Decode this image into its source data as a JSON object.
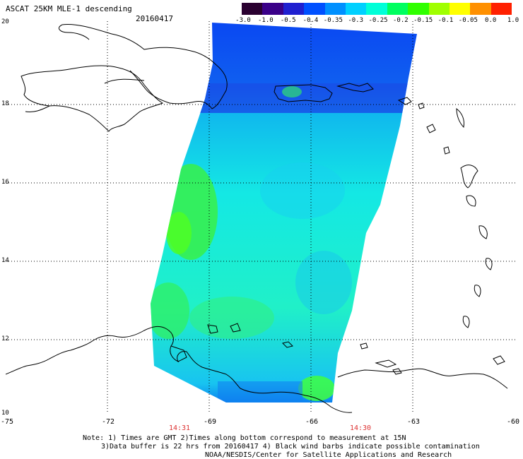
{
  "header": {
    "title": "ASCAT 25KM MLE-1 descending",
    "date": "20160417"
  },
  "colorbar": {
    "labels": [
      "-3.0",
      "-1.0",
      "-0.5",
      "-0.4",
      "-0.35",
      "-0.3",
      "-0.25",
      "-0.2",
      "-0.15",
      "-0.1",
      "-0.05",
      "0.0",
      "1.0"
    ],
    "colors": [
      "#2a0030",
      "#3a0088",
      "#2020d0",
      "#0050ff",
      "#0090ff",
      "#00d0ff",
      "#00ffd8",
      "#00ff60",
      "#30ff00",
      "#a0ff00",
      "#ffff00",
      "#ff9000",
      "#ff2000"
    ]
  },
  "axes": {
    "lat_labels": [
      "20",
      "18",
      "16",
      "14",
      "12",
      "10"
    ],
    "lon_labels": [
      "-75",
      "-72",
      "-69",
      "-66",
      "-63",
      "-60"
    ]
  },
  "times": {
    "left": "14:31",
    "right": "14:30"
  },
  "notes": {
    "line1": "Note: 1) Times are GMT 2)Times along bottom correspond to measurement at 15N",
    "line2": "3)Data buffer is 22 hrs from 20160417 4) Black wind barbs indicate possible contamination",
    "line3": "NOAA/NESDIS/Center for Satellite Applications and Research"
  }
}
